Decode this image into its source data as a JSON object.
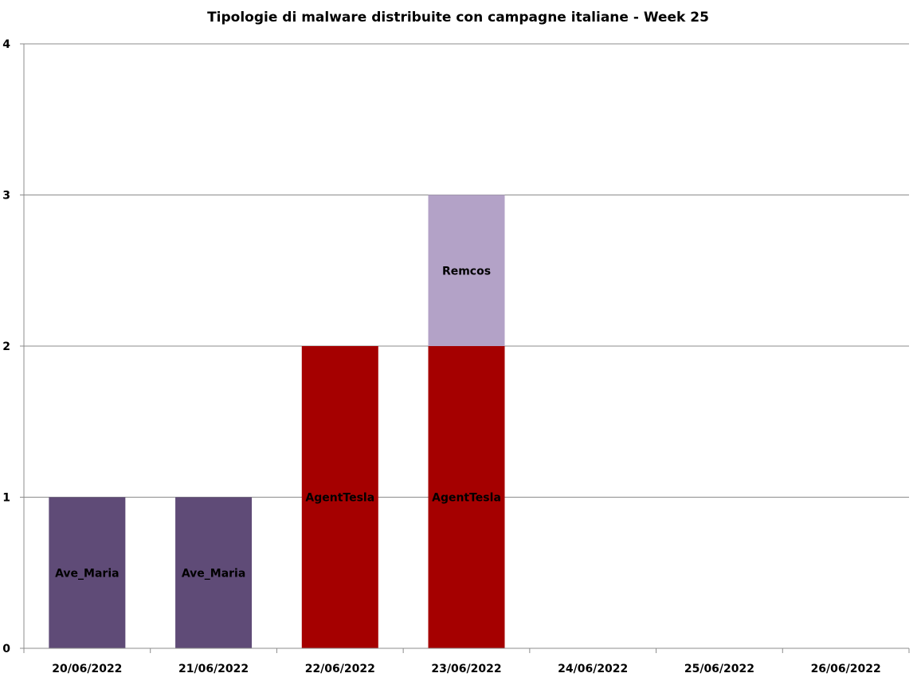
{
  "chart_data": {
    "type": "bar",
    "stacked": true,
    "title": "Tipologie di malware distribuite con campagne italiane - Week 25",
    "xlabel": "",
    "ylabel": "",
    "categories": [
      "20/06/2022",
      "21/06/2022",
      "22/06/2022",
      "23/06/2022",
      "24/06/2022",
      "25/06/2022",
      "26/06/2022"
    ],
    "ylim": [
      0,
      4
    ],
    "yticks": [
      "0",
      "1",
      "2",
      "3",
      "4"
    ],
    "grid": true,
    "legend": "none",
    "series": [
      {
        "name": "Ave_Maria",
        "values": [
          1,
          1,
          0,
          0,
          0,
          0,
          0
        ],
        "color": "#5F4B77"
      },
      {
        "name": "AgentTesla",
        "values": [
          0,
          0,
          2,
          2,
          0,
          0,
          0
        ],
        "color": "#A50000"
      },
      {
        "name": "Remcos",
        "values": [
          0,
          0,
          0,
          1,
          0,
          0,
          0
        ],
        "color": "#B3A2C7"
      }
    ]
  }
}
